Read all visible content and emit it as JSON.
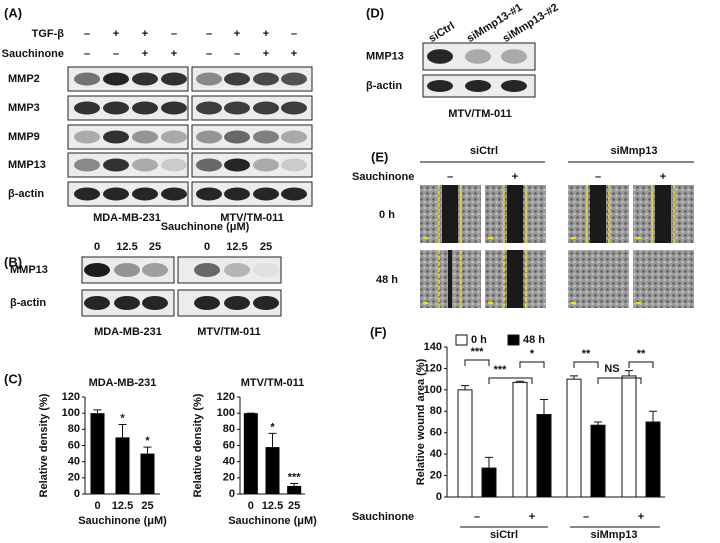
{
  "panels": {
    "A": {
      "label": "(A)",
      "conditions": [
        {
          "name": "TGF-β",
          "signs": [
            "–",
            "+",
            "+",
            "–",
            "–",
            "+",
            "+",
            "–"
          ]
        },
        {
          "name": "Sauchinone",
          "signs": [
            "–",
            "–",
            "+",
            "+",
            "–",
            "–",
            "+",
            "+"
          ]
        }
      ],
      "blots": [
        "MMP2",
        "MMP3",
        "MMP9",
        "MMP13",
        "β-actin"
      ],
      "cell_lines": [
        "MDA-MB-231",
        "MTV/TM-011"
      ]
    },
    "B": {
      "label": "(B)",
      "treatment": "Sauchinone (μM)",
      "lanes": [
        "0",
        "12.5",
        "25",
        "0",
        "12.5",
        "25"
      ],
      "blots": [
        "MMP13",
        "β-actin"
      ],
      "cell_lines": [
        "MDA-MB-231",
        "MTV/TM-011"
      ]
    },
    "C": {
      "label": "(C)"
    },
    "D": {
      "label": "(D)",
      "lanes": [
        "siCtrl",
        "siMmp13-#1",
        "siMmp13-#2"
      ],
      "blots": [
        "MMP13",
        "β-actin"
      ],
      "cell_line": "MTV/TM-011"
    },
    "E": {
      "label": "(E)",
      "groups": [
        "siCtrl",
        "siMmp13"
      ],
      "treatment": "Sauchinone",
      "signs": [
        "–",
        "+",
        "–",
        "+"
      ],
      "timepoints": [
        "0 h",
        "48 h"
      ]
    },
    "F": {
      "label": "(F)"
    }
  },
  "chart_data": [
    {
      "type": "bar",
      "title": "MDA-MB-231",
      "y_label": "Relative density (%)",
      "x_label": "Sauchinone (μM)",
      "categories": [
        "0",
        "12.5",
        "25"
      ],
      "values": [
        100,
        70,
        50
      ],
      "errors": [
        4,
        16,
        8
      ],
      "color": "#000000",
      "ylim": [
        0,
        120
      ],
      "yticks": [
        0,
        20,
        40,
        60,
        80,
        100,
        120
      ],
      "annotations": [
        "*",
        "*"
      ]
    },
    {
      "type": "bar",
      "title": "MTV/TM-011",
      "y_label": "Relative density (%)",
      "x_label": "Sauchinone (μM)",
      "categories": [
        "0",
        "12.5",
        "25"
      ],
      "values": [
        100,
        58,
        10
      ],
      "errors": [
        0,
        17,
        3
      ],
      "color": "#000000",
      "ylim": [
        0,
        120
      ],
      "yticks": [
        0,
        20,
        40,
        60,
        80,
        100,
        120
      ],
      "annotations": [
        "*",
        "***"
      ]
    },
    {
      "type": "grouped_bar",
      "y_label": "Relative wound area (%)",
      "x_label": "Sauchinone",
      "categories": [
        "–",
        "+",
        "–",
        "+"
      ],
      "groups": [
        "siCtrl",
        "siMmp13"
      ],
      "series": [
        {
          "name": "0 h",
          "color": "#ffffff",
          "values": [
            100,
            107,
            110,
            113
          ],
          "errors": [
            4,
            1,
            3,
            5
          ]
        },
        {
          "name": "48 h",
          "color": "#000000",
          "values": [
            27,
            77,
            67,
            70
          ],
          "errors": [
            10,
            14,
            3,
            10
          ]
        }
      ],
      "ylim": [
        0,
        140
      ],
      "yticks": [
        0,
        20,
        40,
        60,
        80,
        100,
        120,
        140
      ],
      "annotations": [
        "***",
        "***",
        "*",
        "**",
        "NS",
        "**"
      ]
    }
  ]
}
